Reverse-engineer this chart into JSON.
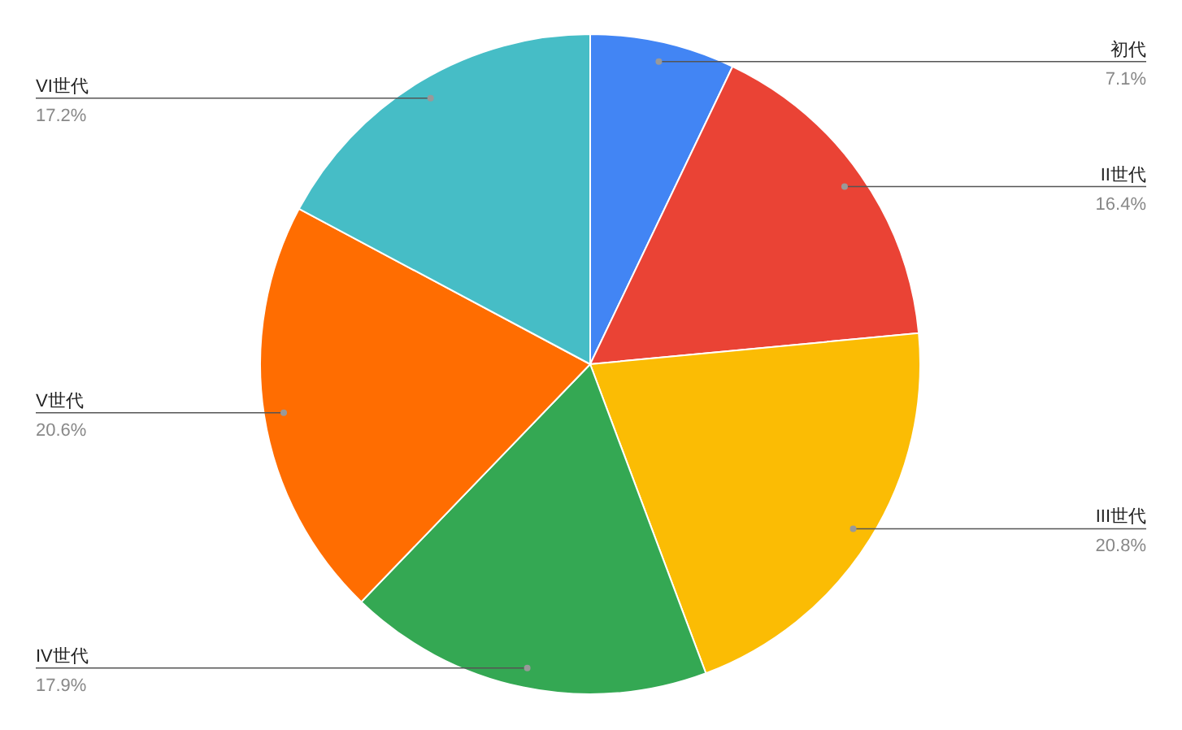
{
  "chart_data": {
    "type": "pie",
    "categories": [
      "初代",
      "II世代",
      "III世代",
      "IV世代",
      "V世代",
      "VI世代"
    ],
    "values": [
      7.1,
      16.4,
      20.8,
      17.9,
      20.6,
      17.2
    ],
    "value_labels": [
      "7.1%",
      "16.4%",
      "20.8%",
      "17.9%",
      "20.6%",
      "17.2%"
    ],
    "colors": [
      "#4285f4",
      "#ea4335",
      "#fbbc04",
      "#34a853",
      "#ff6d01",
      "#46bdc6"
    ]
  }
}
